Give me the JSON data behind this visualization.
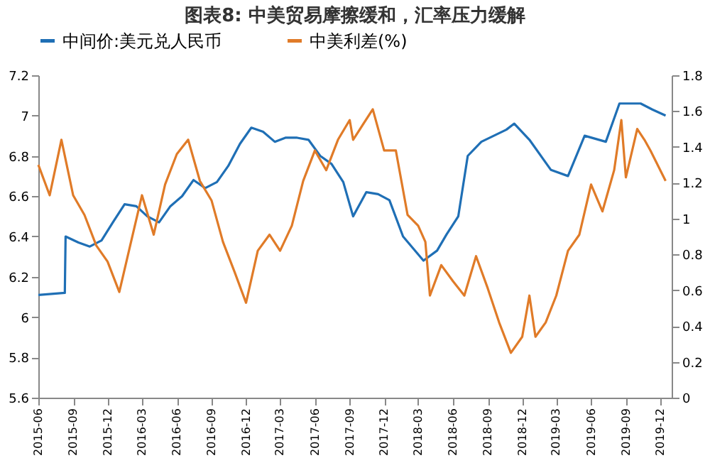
{
  "chart_data": {
    "type": "line",
    "title": "图表8:   中美贸易摩擦缓和，汇率压力缓解",
    "xlim": [
      "2015-06",
      "2019-12-31"
    ],
    "xticks": [
      "2015-06",
      "2015-09",
      "2015-12",
      "2016-03",
      "2016-06",
      "2016-09",
      "2016-12",
      "2017-03",
      "2017-06",
      "2017-09",
      "2017-12",
      "2018-03",
      "2018-06",
      "2018-09",
      "2018-12",
      "2019-03",
      "2019-06",
      "2019-09",
      "2019-12"
    ],
    "ylim": [
      5.6,
      7.2
    ],
    "yticks": [
      5.6,
      5.8,
      6,
      6.2,
      6.4,
      6.6,
      6.8,
      7,
      7.2
    ],
    "y2lim": [
      0,
      1.8
    ],
    "y2ticks": [
      0,
      0.2,
      0.4,
      0.6,
      0.8,
      1,
      1.2,
      1.4,
      1.6,
      1.8
    ],
    "grid": false,
    "legend": "top",
    "line_style": "solid",
    "marker": "none",
    "series": [
      {
        "name": "中间价:美元兑人民币",
        "color": "#1f6fb5",
        "x": [
          "2015-06-01",
          "2015-08-10",
          "2015-08-12",
          "2015-09-15",
          "2015-10-15",
          "2015-11-15",
          "2015-12-15",
          "2016-01-15",
          "2016-02-15",
          "2016-03-15",
          "2016-04-15",
          "2016-05-15",
          "2016-06-15",
          "2016-07-15",
          "2016-08-15",
          "2016-09-15",
          "2016-10-15",
          "2016-11-15",
          "2016-12-15",
          "2017-01-15",
          "2017-02-15",
          "2017-03-15",
          "2017-04-15",
          "2017-05-15",
          "2017-06-15",
          "2017-07-15",
          "2017-08-15",
          "2017-09-10",
          "2017-10-15",
          "2017-11-15",
          "2017-12-15",
          "2018-01-20",
          "2018-03-15",
          "2018-04-20",
          "2018-05-15",
          "2018-06-15",
          "2018-07-10",
          "2018-08-15",
          "2018-10-20",
          "2018-11-10",
          "2018-12-20",
          "2019-02-15",
          "2019-04-01",
          "2019-05-15",
          "2019-07-10",
          "2019-08-15",
          "2019-10-10",
          "2019-11-10",
          "2019-12-15"
        ],
        "values": [
          6.11,
          6.12,
          6.4,
          6.37,
          6.35,
          6.38,
          6.47,
          6.56,
          6.55,
          6.5,
          6.47,
          6.55,
          6.6,
          6.68,
          6.64,
          6.67,
          6.75,
          6.86,
          6.94,
          6.92,
          6.87,
          6.89,
          6.89,
          6.88,
          6.8,
          6.76,
          6.67,
          6.5,
          6.62,
          6.61,
          6.58,
          6.4,
          6.28,
          6.33,
          6.41,
          6.5,
          6.8,
          6.87,
          6.93,
          6.96,
          6.88,
          6.73,
          6.7,
          6.9,
          6.87,
          7.06,
          7.06,
          7.03,
          7.0
        ]
      },
      {
        "name": "中美利差(%)",
        "color": "#e07b28",
        "axis": "y2",
        "x": [
          "2015-06-01",
          "2015-07-01",
          "2015-08-01",
          "2015-09-01",
          "2015-10-01",
          "2015-11-01",
          "2015-12-01",
          "2016-01-01",
          "2016-02-01",
          "2016-03-01",
          "2016-04-01",
          "2016-05-01",
          "2016-06-01",
          "2016-07-01",
          "2016-08-01",
          "2016-09-01",
          "2016-10-01",
          "2016-11-01",
          "2016-12-01",
          "2017-01-01",
          "2017-02-01",
          "2017-03-01",
          "2017-04-01",
          "2017-05-01",
          "2017-06-01",
          "2017-07-01",
          "2017-08-01",
          "2017-09-01",
          "2017-09-10",
          "2017-11-01",
          "2017-12-01",
          "2018-01-01",
          "2018-02-01",
          "2018-03-01",
          "2018-03-20",
          "2018-04-01",
          "2018-05-01",
          "2018-06-01",
          "2018-07-01",
          "2018-08-01",
          "2018-09-01",
          "2018-10-01",
          "2018-11-01",
          "2018-12-01",
          "2018-12-20",
          "2019-01-05",
          "2019-02-01",
          "2019-03-01",
          "2019-04-01",
          "2019-05-01",
          "2019-06-01",
          "2019-07-01",
          "2019-08-01",
          "2019-08-20",
          "2019-09-01",
          "2019-10-01",
          "2019-10-20",
          "2019-11-05",
          "2019-12-15"
        ],
        "values": [
          1.3,
          1.13,
          1.44,
          1.13,
          1.02,
          0.85,
          0.76,
          0.59,
          0.87,
          1.13,
          0.91,
          1.19,
          1.36,
          1.44,
          1.21,
          1.1,
          0.87,
          0.7,
          0.53,
          0.82,
          0.91,
          0.82,
          0.96,
          1.21,
          1.38,
          1.27,
          1.44,
          1.55,
          1.44,
          1.61,
          1.38,
          1.38,
          1.02,
          0.96,
          0.87,
          0.57,
          0.74,
          0.65,
          0.57,
          0.79,
          0.61,
          0.42,
          0.25,
          0.34,
          0.57,
          0.34,
          0.42,
          0.57,
          0.82,
          0.91,
          1.19,
          1.04,
          1.27,
          1.55,
          1.23,
          1.5,
          1.44,
          1.38,
          1.21
        ]
      }
    ]
  }
}
